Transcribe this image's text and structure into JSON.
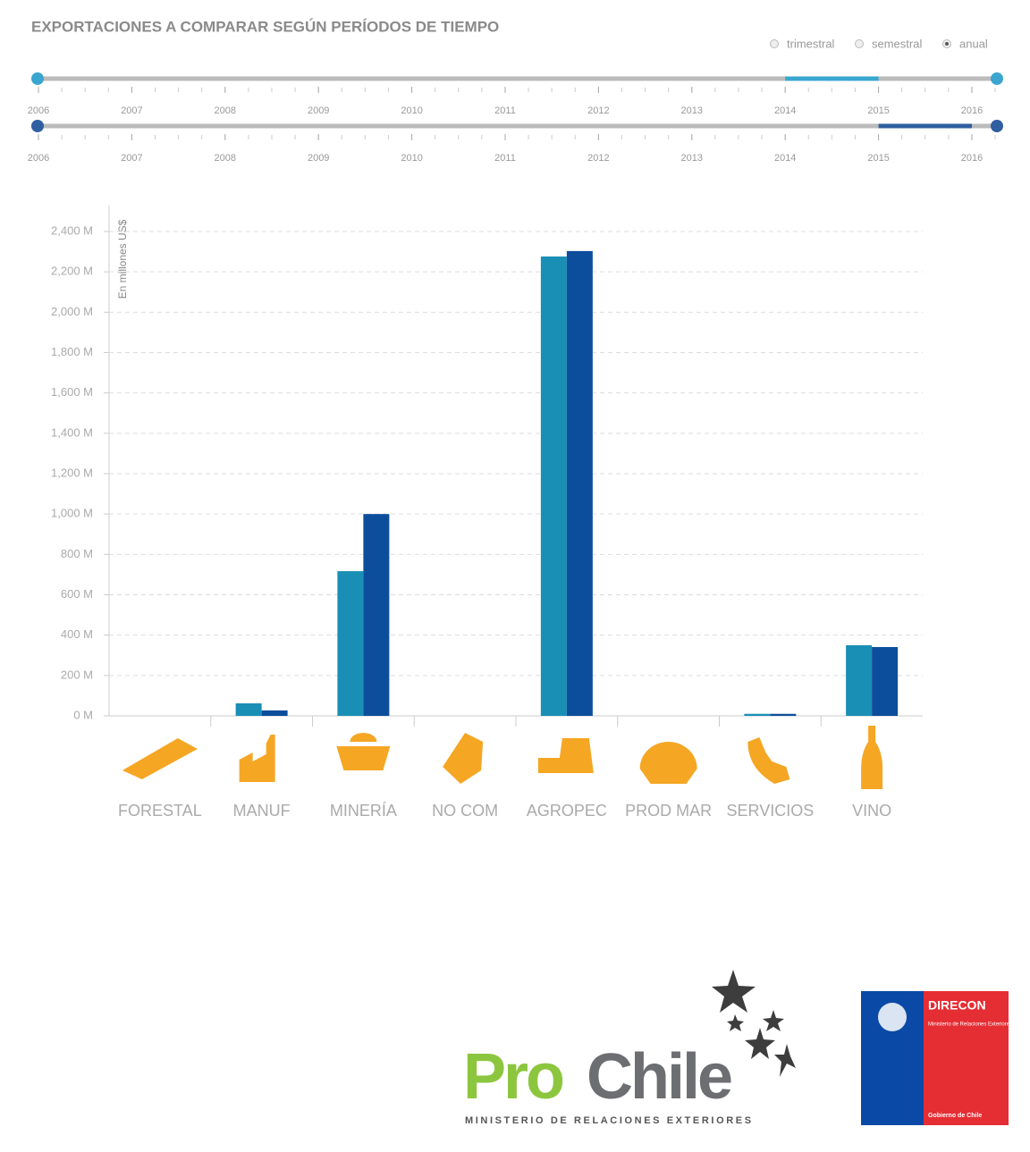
{
  "header": {
    "title": "EXPORTACIONES A COMPARAR SEGÚN PERÍODOS DE TIEMPO",
    "periods": [
      "trimestral",
      "semestral",
      "anual"
    ],
    "selected_period": "anual"
  },
  "sliders": [
    {
      "years": [
        2006,
        2007,
        2008,
        2009,
        2010,
        2011,
        2012,
        2013,
        2014,
        2015,
        2016
      ],
      "range": [
        2014,
        2015
      ],
      "color": "#3aa6cf"
    },
    {
      "years": [
        2006,
        2007,
        2008,
        2009,
        2010,
        2011,
        2012,
        2013,
        2014,
        2015,
        2016
      ],
      "range": [
        2015,
        2016
      ],
      "color": "#2f5fa0"
    }
  ],
  "chart_data": {
    "type": "bar",
    "y_label": "En millones US$",
    "categories": [
      "FORESTAL",
      "MANUF",
      "MINERÍA",
      "NO COM",
      "AGROPEC",
      "PROD MAR",
      "SERVICIOS",
      "VINO"
    ],
    "series": [
      {
        "color": "#1a8fb5",
        "values": [
          0,
          62,
          717,
          0,
          2276,
          0,
          10,
          350
        ]
      },
      {
        "color": "#0d4e9c",
        "values": [
          0,
          27,
          1000,
          0,
          2303,
          0,
          10,
          341
        ]
      }
    ],
    "ylim": [
      0,
      2400
    ],
    "yticks": [
      {
        "value": 0,
        "label": "0 M"
      },
      {
        "value": 200,
        "label": "200 M"
      },
      {
        "value": 400,
        "label": "400 M"
      },
      {
        "value": 600,
        "label": "600 M"
      },
      {
        "value": 800,
        "label": "800 M"
      },
      {
        "value": 1000,
        "label": "1,000 M"
      },
      {
        "value": 1200,
        "label": "1,200 M"
      },
      {
        "value": 1400,
        "label": "1,400 M"
      },
      {
        "value": 1600,
        "label": "1,600 M"
      },
      {
        "value": 1800,
        "label": "1,800 M"
      },
      {
        "value": 2000,
        "label": "2,000 M"
      },
      {
        "value": 2200,
        "label": "2,200 M"
      },
      {
        "value": 2400,
        "label": "2,400 M"
      }
    ],
    "grid": true,
    "icon_color": "#f5a623"
  },
  "footer": {
    "prochile": [
      "Pro",
      "Chile"
    ],
    "ministry": "MINISTERIO DE RELACIONES EXTERIORES",
    "direcon": {
      "title": "DIRECON",
      "subtitle": "Ministerio de Relaciones Exteriores",
      "government": "Gobierno de Chile"
    }
  }
}
